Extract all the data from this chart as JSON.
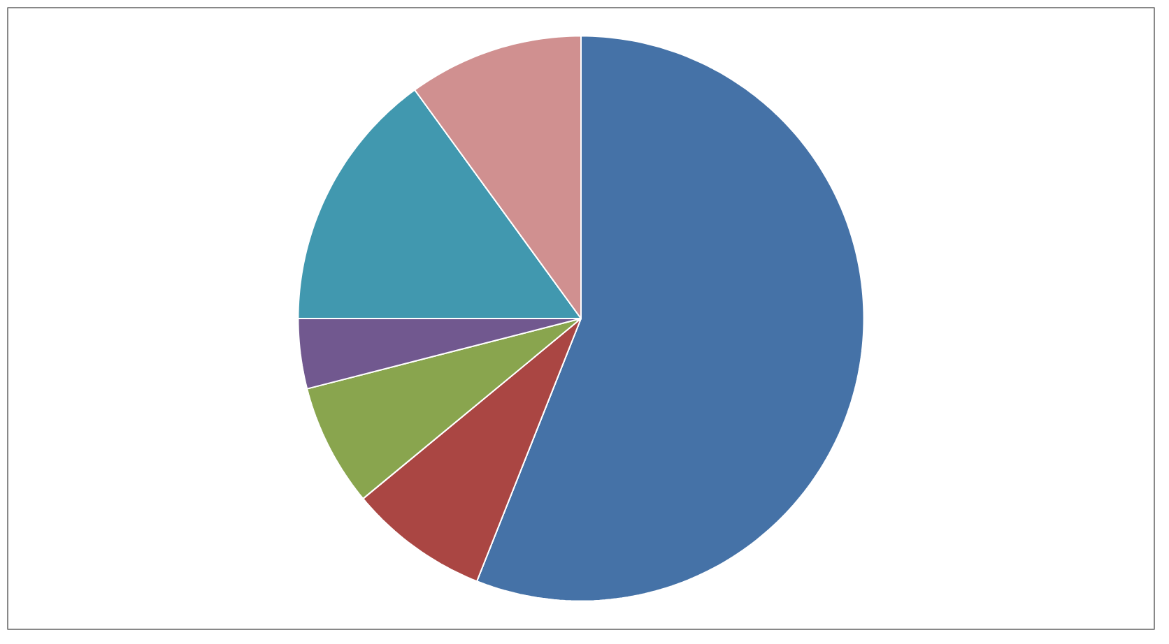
{
  "chart_data": {
    "type": "pie",
    "categories": [
      null,
      null,
      null,
      null,
      null,
      null
    ],
    "values": [
      56,
      8,
      7,
      4,
      15,
      10
    ],
    "colors": [
      "#4572a7",
      "#aa4643",
      "#89a54e",
      "#71588f",
      "#4198af",
      "#d09090"
    ]
  }
}
